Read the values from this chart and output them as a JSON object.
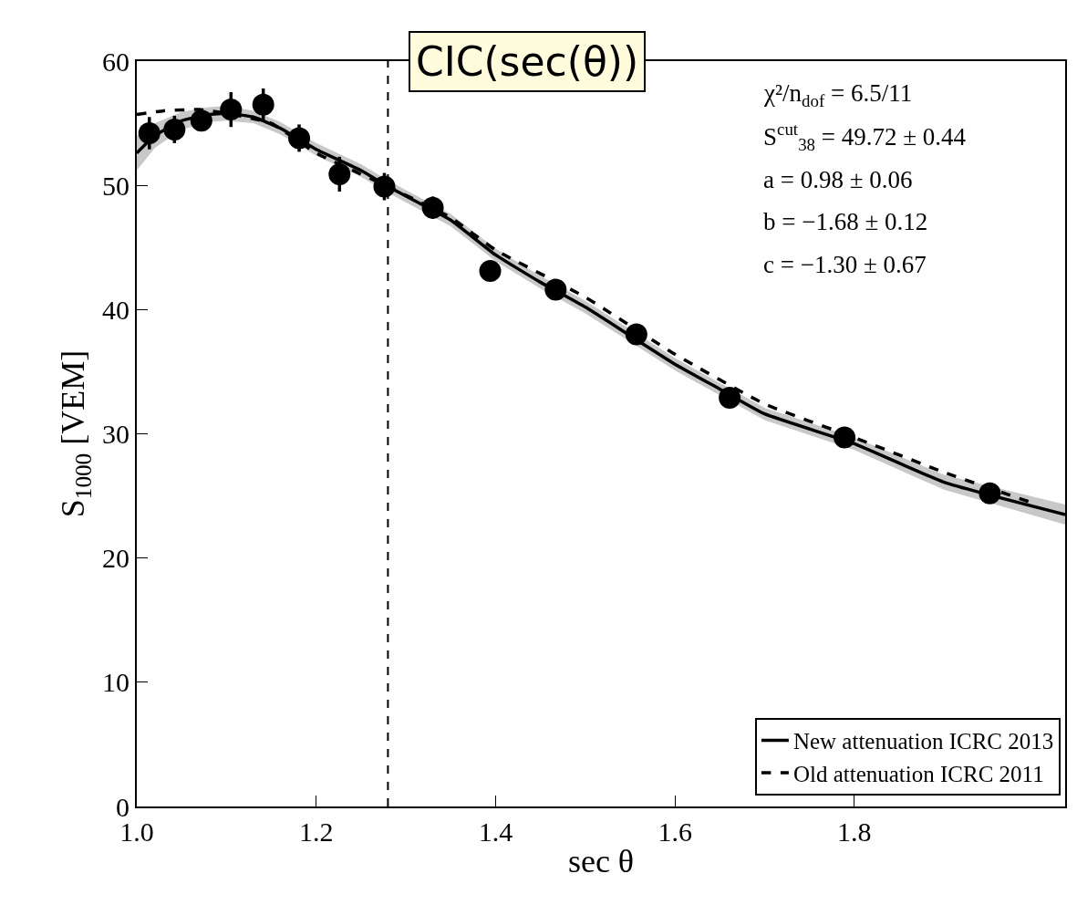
{
  "chart_data": {
    "type": "scatter",
    "title": "CIC(sec(θ))",
    "xlabel": "sec θ",
    "ylabel": "S$_{1000}$ [VEM]",
    "xlim": [
      1.0,
      2.035
    ],
    "ylim": [
      0,
      60
    ],
    "xticks": [
      {
        "value": 1.0,
        "label": "1.0"
      },
      {
        "value": 1.2,
        "label": "1.2"
      },
      {
        "value": 1.4,
        "label": "1.4"
      },
      {
        "value": 1.6,
        "label": "1.6"
      },
      {
        "value": 1.8,
        "label": "1.8"
      }
    ],
    "yticks": [
      0,
      10,
      20,
      30,
      40,
      50,
      60
    ],
    "legend": "bottom right",
    "annotations": [
      "χ²/n$_{dof}$ = 6.5/11",
      "S$^{cut}$$_{38}$ = 49.72 ± 0.44",
      "a = 0.98 ± 0.06",
      "b = −1.68 ± 0.12",
      "c = −1.30 ± 0.67"
    ],
    "ref_lines": [
      {
        "axis": "x",
        "value": 1.28,
        "color": "#000000",
        "line_style": "dashed"
      }
    ],
    "series": [
      {
        "color": "#000000",
        "marker": "circle",
        "x": [
          1.014,
          1.042,
          1.072,
          1.105,
          1.141,
          1.181,
          1.226,
          1.276,
          1.33,
          1.394,
          1.467,
          1.557,
          1.661,
          1.789,
          1.951
        ],
        "values": [
          54.2,
          54.5,
          55.2,
          56.1,
          56.5,
          53.8,
          50.9,
          49.9,
          48.2,
          43.1,
          41.6,
          38.0,
          32.9,
          29.7,
          25.2
        ],
        "errors": [
          1.3,
          1.1,
          0.7,
          1.4,
          1.3,
          1.1,
          1.4,
          1.1,
          0.9,
          0.8,
          0.6,
          0.6,
          0.6,
          0.6,
          0.6
        ]
      },
      {
        "type": "line",
        "name": "New attenuation ICRC 2013",
        "color": "#000000",
        "line_style": "solid",
        "marker": "none",
        "x": [
          1.0,
          1.02,
          1.05,
          1.08,
          1.1,
          1.13,
          1.16,
          1.2,
          1.25,
          1.28,
          1.35,
          1.4,
          1.45,
          1.5,
          1.55,
          1.6,
          1.65,
          1.7,
          1.8,
          1.9,
          2.035
        ],
        "values": [
          52.6,
          54.0,
          55.2,
          55.7,
          55.8,
          55.5,
          54.6,
          52.9,
          51.2,
          49.9,
          47.2,
          44.4,
          42.2,
          40.2,
          37.9,
          35.6,
          33.6,
          31.6,
          29.2,
          26.1,
          23.5
        ],
        "lower": [
          51.2,
          53.0,
          54.5,
          55.1,
          55.2,
          55.0,
          54.1,
          52.4,
          50.7,
          49.4,
          46.7,
          43.9,
          41.7,
          39.7,
          37.4,
          35.1,
          33.1,
          31.1,
          28.7,
          25.5,
          22.7
        ],
        "upper": [
          54.0,
          55.0,
          55.9,
          56.3,
          56.4,
          56.0,
          55.1,
          53.4,
          51.7,
          50.4,
          47.7,
          44.9,
          42.7,
          40.7,
          38.4,
          36.1,
          34.1,
          32.1,
          29.7,
          26.7,
          24.3
        ]
      },
      {
        "type": "line",
        "name": "Old attenuation ICRC 2011",
        "color": "#000000",
        "line_style": "dashed",
        "marker": "none",
        "x": [
          1.0,
          1.03,
          1.07,
          1.1,
          1.15,
          1.2,
          1.28,
          1.35,
          1.4,
          1.5,
          1.6,
          1.7,
          1.8,
          1.9,
          2.0
        ],
        "values": [
          55.7,
          56.0,
          56.1,
          55.8,
          55.0,
          52.6,
          49.9,
          47.4,
          44.8,
          41.0,
          36.4,
          32.4,
          29.7,
          26.9,
          24.4
        ]
      }
    ]
  }
}
